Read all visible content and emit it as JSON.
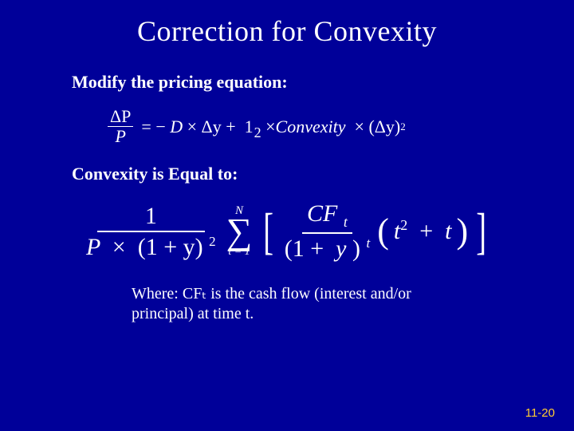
{
  "slide": {
    "title": "Correction for Convexity",
    "section1": "Modify the pricing equation:",
    "section2": "Convexity is Equal to:",
    "where": "Where:  CFₜ is the cash flow (interest and/or principal) at time t.",
    "footer": "11-20"
  },
  "eq1": {
    "frac_num": "ΔP",
    "frac_den": "P",
    "eq": "=",
    "neg": "−",
    "D": "D",
    "times": "×",
    "dy": "Δy",
    "plus": "+",
    "half_one": "1",
    "half_two": "2",
    "convexity": "Convexity",
    "lparen": "(",
    "rparen": ")",
    "sq": "2"
  },
  "eq2": {
    "fracL_num": "1",
    "fracL_den_P": "P",
    "fracL_den_times": "×",
    "fracL_den_paren": "(1 + y)",
    "fracL_den_sq": "2",
    "sigma_top": "N",
    "sigma_sym": "∑",
    "sigma_bot": "t = 1",
    "lbrack": "[",
    "rbrack": "]",
    "fracR_num_CF": "CF",
    "fracR_num_sub": "t",
    "fracR_den_paren": "(1 +",
    "fracR_den_y": "y",
    "fracR_den_close": ")",
    "fracR_den_sup": "t",
    "paren_l": "(",
    "paren_r": ")",
    "t": "t",
    "sq": "2",
    "plus": "+"
  },
  "style": {
    "background_color": "#000099",
    "text_color": "#ffffff",
    "footer_color": "#ffcc33",
    "title_fontsize": 36,
    "body_fontsize": 22,
    "eq2_fontsize": 30,
    "font_family": "Times New Roman"
  }
}
